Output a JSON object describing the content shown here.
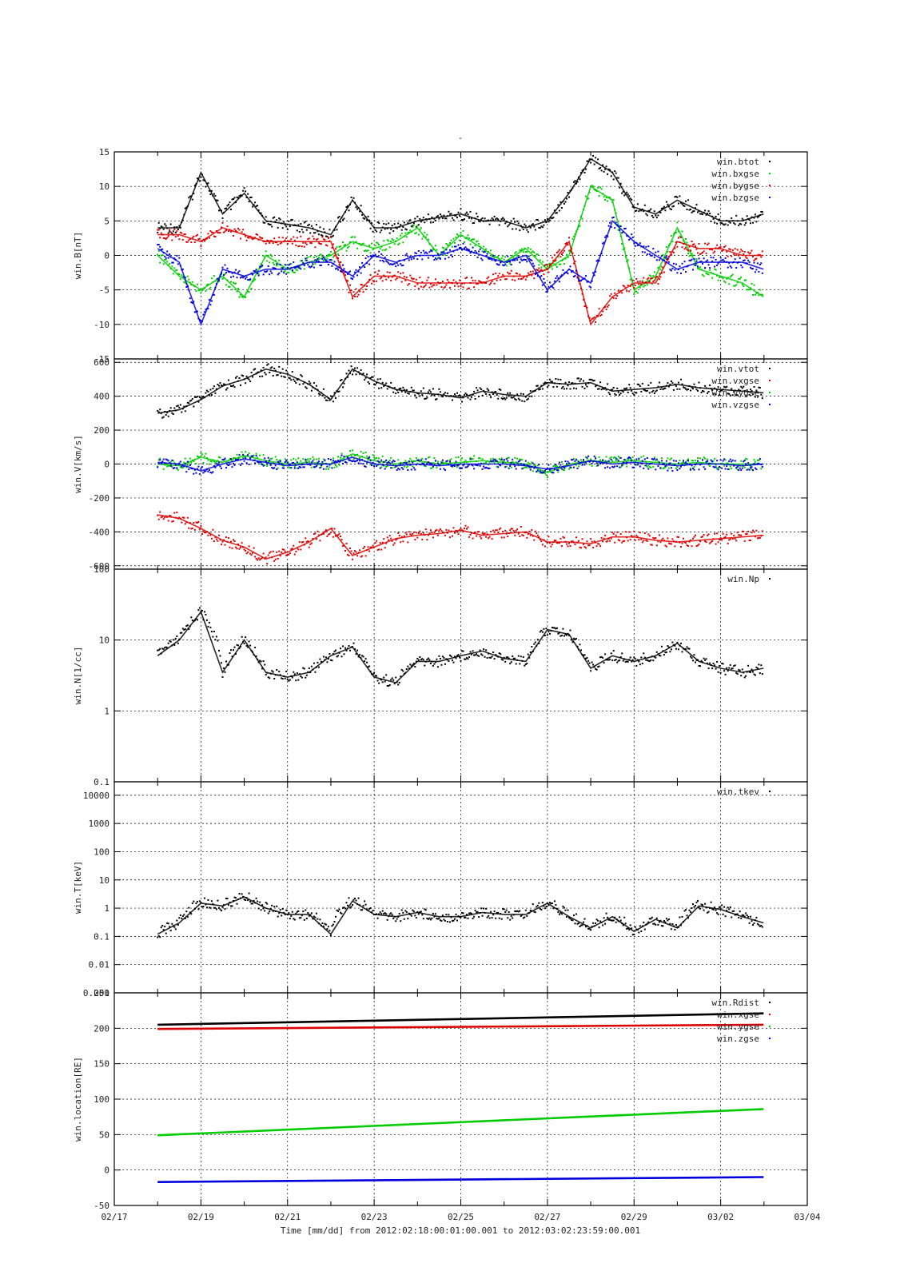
{
  "page_title": "-",
  "x_axis": {
    "label": "Time [mm/dd]  from 2012:02:18:00:01:00.001  to  2012:03:02:23:59:00.001",
    "start": "2012-02-17",
    "end": "2012-03-04",
    "ticks": [
      "02/17",
      "02/19",
      "02/21",
      "02/23",
      "02/25",
      "02/27",
      "02/29",
      "03/02",
      "03/04"
    ]
  },
  "chart_data": [
    {
      "type": "scatter",
      "ylabel": "win.B[nT]",
      "ylim": [
        -15,
        15
      ],
      "yticks": [
        "15",
        "10",
        "5",
        "0",
        "-5",
        "-10",
        "-15"
      ],
      "grid": true,
      "legend": "top-right",
      "series": [
        {
          "name": "win.btot",
          "color": "#000000",
          "x": [
            "02/18",
            "02/18.5",
            "02/19",
            "02/19.5",
            "02/20",
            "02/20.5",
            "02/21",
            "02/21.5",
            "02/22",
            "02/22.5",
            "02/23",
            "02/23.5",
            "02/24",
            "02/24.5",
            "02/25",
            "02/25.5",
            "02/26",
            "02/26.5",
            "02/27",
            "02/27.5",
            "02/28",
            "02/28.5",
            "02/29",
            "02/29.5",
            "03/01",
            "03/01.5",
            "03/02",
            "03/02.5",
            "03/02.99"
          ],
          "values": [
            4,
            4,
            12,
            6,
            9,
            5,
            4.5,
            4,
            3,
            8,
            4,
            4,
            5,
            5.5,
            6,
            5,
            5,
            4,
            5,
            9,
            14,
            12,
            7,
            6,
            8,
            6.5,
            5,
            5,
            6
          ]
        },
        {
          "name": "win.bxgse",
          "color": "#00cc00",
          "x": [
            "02/18",
            "02/18.5",
            "02/19",
            "02/19.5",
            "02/20",
            "02/20.5",
            "02/21",
            "02/21.5",
            "02/22",
            "02/22.5",
            "02/23",
            "02/23.5",
            "02/24",
            "02/24.5",
            "02/25",
            "02/25.5",
            "02/26",
            "02/26.5",
            "02/27",
            "02/27.5",
            "02/28",
            "02/28.5",
            "02/29",
            "02/29.5",
            "03/01",
            "03/01.5",
            "03/02",
            "03/02.5",
            "03/02.99"
          ],
          "values": [
            0,
            -3,
            -5,
            -3,
            -6,
            0,
            -2,
            -1,
            0,
            2,
            1,
            2,
            4,
            0,
            3,
            1,
            -1,
            1,
            -2,
            0,
            10,
            8,
            -5,
            -3,
            4,
            -2,
            -3,
            -4,
            -6
          ]
        },
        {
          "name": "win.bygse",
          "color": "#dd0000",
          "x": [
            "02/18",
            "02/18.5",
            "02/19",
            "02/19.5",
            "02/20",
            "02/20.5",
            "02/21",
            "02/21.5",
            "02/22",
            "02/22.5",
            "02/23",
            "02/23.5",
            "02/24",
            "02/24.5",
            "02/25",
            "02/25.5",
            "02/26",
            "02/26.5",
            "02/27",
            "02/27.5",
            "02/28",
            "02/28.5",
            "02/29",
            "02/29.5",
            "03/01",
            "03/01.5",
            "03/02",
            "03/02.5",
            "03/02.99"
          ],
          "values": [
            3,
            3,
            2,
            4,
            3,
            2,
            2,
            2,
            2,
            -6,
            -3,
            -3,
            -4,
            -4,
            -4,
            -4,
            -3,
            -3,
            -2,
            2,
            -10,
            -6,
            -4,
            -4,
            2,
            1,
            1,
            0,
            0
          ]
        },
        {
          "name": "win.bzgse",
          "color": "#0000dd",
          "x": [
            "02/18",
            "02/18.5",
            "02/19",
            "02/19.5",
            "02/20",
            "02/20.5",
            "02/21",
            "02/21.5",
            "02/22",
            "02/22.5",
            "02/23",
            "02/23.5",
            "02/24",
            "02/24.5",
            "02/25",
            "02/25.5",
            "02/26",
            "02/26.5",
            "02/27",
            "02/27.5",
            "02/28",
            "02/28.5",
            "02/29",
            "02/29.5",
            "03/01",
            "03/01.5",
            "03/02",
            "03/02.5",
            "03/02.99"
          ],
          "values": [
            1,
            -1,
            -10,
            -2,
            -3,
            -2,
            -2,
            -1,
            -1,
            -3,
            0,
            -1,
            0,
            0,
            1,
            0,
            -1,
            0,
            -5,
            -2,
            -4,
            5,
            2,
            0,
            -2,
            -1,
            -1,
            -1,
            -2
          ]
        }
      ]
    },
    {
      "type": "scatter",
      "ylabel": "win.V[km/s]",
      "ylim": [
        -620,
        620
      ],
      "yticks": [
        "600",
        "400",
        "200",
        "0",
        "-200",
        "-400",
        "-600"
      ],
      "grid": true,
      "legend": "top-right",
      "series": [
        {
          "name": "win.vtot",
          "color": "#000000",
          "x": [
            "02/18",
            "02/18.5",
            "02/19",
            "02/19.5",
            "02/20",
            "02/20.5",
            "02/21",
            "02/21.5",
            "02/22",
            "02/22.5",
            "02/23",
            "02/23.5",
            "02/24",
            "02/24.5",
            "02/25",
            "02/25.5",
            "02/26",
            "02/26.5",
            "02/27",
            "02/27.5",
            "02/28",
            "02/28.5",
            "02/29",
            "02/29.5",
            "03/01",
            "03/01.5",
            "03/02",
            "03/02.5",
            "03/02.99"
          ],
          "values": [
            300,
            320,
            380,
            460,
            500,
            560,
            530,
            470,
            380,
            560,
            490,
            440,
            420,
            410,
            390,
            430,
            410,
            400,
            480,
            470,
            480,
            430,
            440,
            450,
            470,
            450,
            440,
            430,
            420
          ]
        },
        {
          "name": "win.vxgse",
          "color": "#dd0000",
          "x": [
            "02/18",
            "02/18.5",
            "02/19",
            "02/19.5",
            "02/20",
            "02/20.5",
            "02/21",
            "02/21.5",
            "02/22",
            "02/22.5",
            "02/23",
            "02/23.5",
            "02/24",
            "02/24.5",
            "02/25",
            "02/25.5",
            "02/26",
            "02/26.5",
            "02/27",
            "02/27.5",
            "02/28",
            "02/28.5",
            "02/29",
            "02/29.5",
            "03/01",
            "03/01.5",
            "03/02",
            "03/02.5",
            "03/02.99"
          ],
          "values": [
            -300,
            -320,
            -380,
            -450,
            -490,
            -560,
            -520,
            -460,
            -380,
            -540,
            -490,
            -440,
            -420,
            -410,
            -390,
            -420,
            -410,
            -400,
            -460,
            -460,
            -470,
            -430,
            -430,
            -450,
            -460,
            -450,
            -440,
            -430,
            -420
          ]
        },
        {
          "name": "win.vygse",
          "color": "#00cc00",
          "x": [
            "02/18",
            "02/18.5",
            "02/19",
            "02/19.5",
            "02/20",
            "02/20.5",
            "02/21",
            "02/21.5",
            "02/22",
            "02/22.5",
            "02/23",
            "02/23.5",
            "02/24",
            "02/24.5",
            "02/25",
            "02/25.5",
            "02/26",
            "02/26.5",
            "02/27",
            "02/27.5",
            "02/28",
            "02/28.5",
            "02/29",
            "02/29.5",
            "03/01",
            "03/01.5",
            "03/02",
            "03/02.5",
            "03/02.99"
          ],
          "values": [
            0,
            -10,
            40,
            10,
            50,
            20,
            0,
            10,
            0,
            60,
            20,
            0,
            20,
            0,
            10,
            20,
            10,
            0,
            -50,
            0,
            20,
            10,
            20,
            10,
            0,
            10,
            0,
            0,
            0
          ]
        },
        {
          "name": "win.vzgse",
          "color": "#0000dd",
          "x": [
            "02/18",
            "02/18.5",
            "02/19",
            "02/19.5",
            "02/20",
            "02/20.5",
            "02/21",
            "02/21.5",
            "02/22",
            "02/22.5",
            "02/23",
            "02/23.5",
            "02/24",
            "02/24.5",
            "02/25",
            "02/25.5",
            "02/26",
            "02/26.5",
            "02/27",
            "02/27.5",
            "02/28",
            "02/28.5",
            "02/29",
            "02/29.5",
            "03/01",
            "03/01.5",
            "03/02",
            "03/02.5",
            "03/02.99"
          ],
          "values": [
            10,
            0,
            -40,
            0,
            30,
            10,
            -10,
            0,
            0,
            40,
            0,
            -10,
            0,
            -10,
            0,
            0,
            0,
            -10,
            -30,
            -10,
            20,
            0,
            10,
            0,
            -10,
            0,
            0,
            -10,
            0
          ]
        }
      ]
    },
    {
      "type": "scatter",
      "ylabel": "win.N[1/cc]",
      "yscale": "log",
      "ylim": [
        0.1,
        100
      ],
      "yticks": [
        "100",
        "10",
        "1",
        "0.1"
      ],
      "grid": true,
      "legend": "top-right",
      "series": [
        {
          "name": "win.Np",
          "color": "#000000",
          "x": [
            "02/18",
            "02/18.5",
            "02/19",
            "02/19.5",
            "02/20",
            "02/20.5",
            "02/21",
            "02/21.5",
            "02/22",
            "02/22.5",
            "02/23",
            "02/23.5",
            "02/24",
            "02/24.5",
            "02/25",
            "02/25.5",
            "02/26",
            "02/26.5",
            "02/27",
            "02/27.5",
            "02/28",
            "02/28.5",
            "02/29",
            "02/29.5",
            "03/01",
            "03/01.5",
            "03/02",
            "03/02.5",
            "03/02.99"
          ],
          "values": [
            6,
            10,
            25,
            3.5,
            10,
            3.5,
            3,
            3.5,
            6,
            8,
            3,
            2.5,
            5,
            5,
            6,
            7,
            5.5,
            5,
            14,
            12,
            4,
            6,
            5,
            6,
            9,
            5,
            4,
            3.5,
            4
          ]
        }
      ]
    },
    {
      "type": "scatter",
      "ylabel": "win.T[keV]",
      "yscale": "log",
      "ylim": [
        0.001,
        30000
      ],
      "yticks": [
        "10000",
        "1000",
        "100",
        "10",
        "1",
        "0.1",
        "0.01",
        "0.001"
      ],
      "grid": true,
      "legend": "top-right",
      "series": [
        {
          "name": "win.tkev",
          "color": "#000000",
          "x": [
            "02/18",
            "02/18.5",
            "02/19",
            "02/19.5",
            "02/20",
            "02/20.5",
            "02/21",
            "02/21.5",
            "02/22",
            "02/22.5",
            "02/23",
            "02/23.5",
            "02/24",
            "02/24.5",
            "02/25",
            "02/25.5",
            "02/26",
            "02/26.5",
            "02/27",
            "02/27.5",
            "02/28",
            "02/28.5",
            "02/29",
            "02/29.5",
            "03/01",
            "03/01.5",
            "03/02",
            "03/02.5",
            "03/02.99"
          ],
          "values": [
            0.12,
            0.3,
            1.5,
            1.2,
            2.5,
            1,
            0.6,
            0.6,
            0.12,
            1.8,
            0.6,
            0.5,
            0.7,
            0.5,
            0.5,
            0.7,
            0.6,
            0.6,
            1.5,
            0.5,
            0.2,
            0.5,
            0.15,
            0.4,
            0.2,
            1.2,
            0.9,
            0.5,
            0.3
          ]
        }
      ]
    },
    {
      "type": "line",
      "ylabel": "win.location[RE]",
      "ylim": [
        -50,
        250
      ],
      "yticks": [
        "250",
        "200",
        "150",
        "100",
        "50",
        "0",
        "-50"
      ],
      "grid": true,
      "legend": "top-right",
      "series": [
        {
          "name": "win.Rdist",
          "color": "#000000",
          "x": [
            "02/18",
            "03/02.99"
          ],
          "values": [
            205,
            221
          ]
        },
        {
          "name": "win.xgse",
          "color": "#dd0000",
          "x": [
            "02/18",
            "03/02.99"
          ],
          "values": [
            199,
            205
          ]
        },
        {
          "name": "win.ygse",
          "color": "#00cc00",
          "x": [
            "02/18",
            "03/02.99"
          ],
          "values": [
            49,
            86
          ]
        },
        {
          "name": "win.zgse",
          "color": "#0000dd",
          "x": [
            "02/18",
            "03/02.99"
          ],
          "values": [
            -17,
            -10
          ]
        }
      ]
    }
  ]
}
